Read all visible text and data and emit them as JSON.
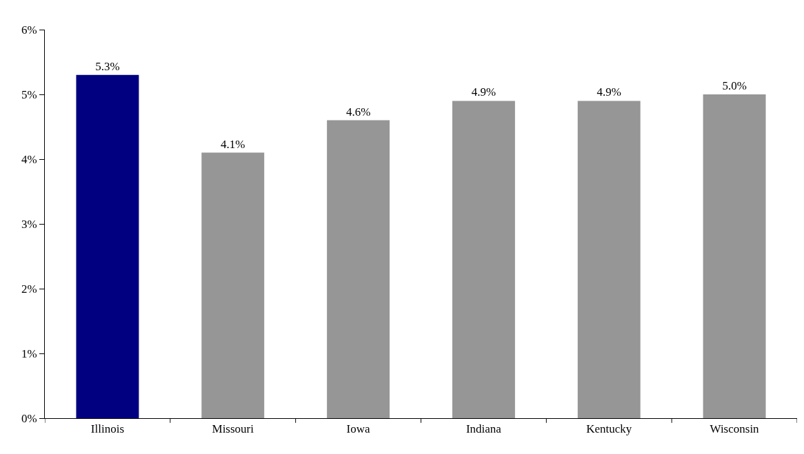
{
  "chart_data": {
    "type": "bar",
    "categories": [
      "Illinois",
      "Missouri",
      "Iowa",
      "Indiana",
      "Kentucky",
      "Wisconsin"
    ],
    "values": [
      5.3,
      4.1,
      4.6,
      4.9,
      4.9,
      5.0
    ],
    "colors": [
      "#000080",
      "#969696",
      "#969696",
      "#969696",
      "#969696",
      "#969696"
    ],
    "value_labels": [
      "5.3%",
      "4.1%",
      "4.6%",
      "4.9%",
      "4.9%",
      "5.0%"
    ],
    "ylim": [
      0,
      6
    ],
    "yticks": [
      {
        "value": 0,
        "label": "0%"
      },
      {
        "value": 1,
        "label": "1%"
      },
      {
        "value": 2,
        "label": "2%"
      },
      {
        "value": 3,
        "label": "3%"
      },
      {
        "value": 4,
        "label": "4%"
      },
      {
        "value": 5,
        "label": "5%"
      },
      {
        "value": 6,
        "label": "6%"
      }
    ],
    "tick_labels": true
  }
}
